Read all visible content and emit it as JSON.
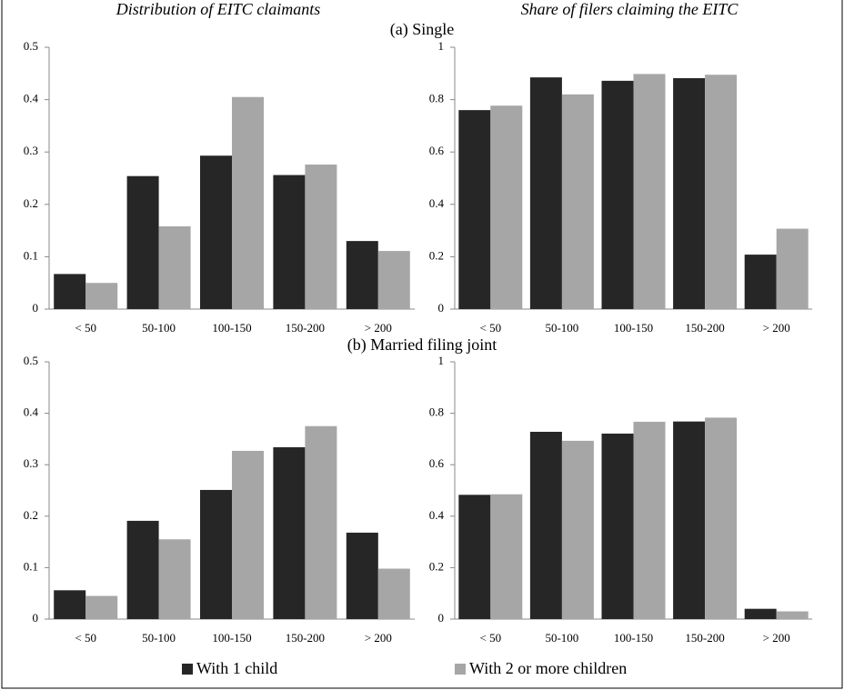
{
  "column_titles": [
    "Distribution of EITC claimants",
    "Share of filers claiming the EITC"
  ],
  "panel_titles": [
    "(a) Single",
    "(b) Married filing joint"
  ],
  "chart_data": [
    {
      "type": "bar",
      "categories": [
        "< 50",
        "50-100",
        "100-150",
        "150-200",
        "> 200"
      ],
      "series": [
        {
          "name": "With 1 child",
          "color": "#262626",
          "values": [
            0.067,
            0.254,
            0.293,
            0.256,
            0.13
          ]
        },
        {
          "name": "With 2 or more children",
          "color": "#a6a6a6",
          "values": [
            0.05,
            0.158,
            0.405,
            0.276,
            0.111
          ]
        }
      ],
      "ylim": [
        0,
        0.5
      ],
      "yticks": [
        0,
        0.1,
        0.2,
        0.3,
        0.4,
        0.5
      ]
    },
    {
      "type": "bar",
      "categories": [
        "< 50",
        "50-100",
        "100-150",
        "150-200",
        "> 200"
      ],
      "series": [
        {
          "name": "With 1 child",
          "color": "#262626",
          "values": [
            0.76,
            0.885,
            0.872,
            0.882,
            0.208
          ]
        },
        {
          "name": "With 2 or more children",
          "color": "#a6a6a6",
          "values": [
            0.777,
            0.82,
            0.898,
            0.895,
            0.307
          ]
        }
      ],
      "ylim": [
        0,
        1
      ],
      "yticks": [
        0,
        0.2,
        0.4,
        0.6,
        0.8,
        1
      ]
    },
    {
      "type": "bar",
      "categories": [
        "< 50",
        "50-100",
        "100-150",
        "150-200",
        "> 200"
      ],
      "series": [
        {
          "name": "With 1 child",
          "color": "#262626",
          "values": [
            0.056,
            0.191,
            0.251,
            0.334,
            0.168
          ]
        },
        {
          "name": "With 2 or more children",
          "color": "#a6a6a6",
          "values": [
            0.045,
            0.155,
            0.327,
            0.375,
            0.098
          ]
        }
      ],
      "ylim": [
        0,
        0.5
      ],
      "yticks": [
        0,
        0.1,
        0.2,
        0.3,
        0.4,
        0.5
      ]
    },
    {
      "type": "bar",
      "categories": [
        "< 50",
        "50-100",
        "100-150",
        "150-200",
        "> 200"
      ],
      "series": [
        {
          "name": "With 1 child",
          "color": "#262626",
          "values": [
            0.483,
            0.728,
            0.721,
            0.768,
            0.04
          ]
        },
        {
          "name": "With 2 or more children",
          "color": "#a6a6a6",
          "values": [
            0.485,
            0.693,
            0.767,
            0.783,
            0.03
          ]
        }
      ],
      "ylim": [
        0,
        1
      ],
      "yticks": [
        0,
        0.2,
        0.4,
        0.6,
        0.8,
        1
      ]
    }
  ]
}
